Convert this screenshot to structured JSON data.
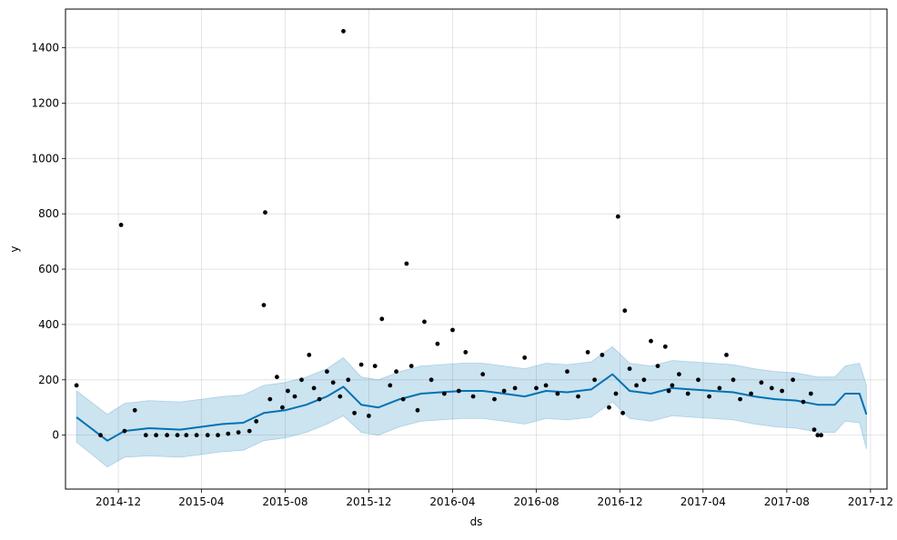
{
  "chart_data": {
    "type": "line",
    "title": "",
    "xlabel": "ds",
    "ylabel": "y",
    "xlim": [
      "2014-09-15",
      "2017-12-25"
    ],
    "ylim": [
      -195,
      1540
    ],
    "grid": true,
    "x_ticks": [
      {
        "date": "2014-12-01",
        "label": "2014-12"
      },
      {
        "date": "2015-04-01",
        "label": "2015-04"
      },
      {
        "date": "2015-08-01",
        "label": "2015-08"
      },
      {
        "date": "2015-12-01",
        "label": "2015-12"
      },
      {
        "date": "2016-04-01",
        "label": "2016-04"
      },
      {
        "date": "2016-08-01",
        "label": "2016-08"
      },
      {
        "date": "2016-12-01",
        "label": "2016-12"
      },
      {
        "date": "2017-04-01",
        "label": "2017-04"
      },
      {
        "date": "2017-08-01",
        "label": "2017-08"
      },
      {
        "date": "2017-12-01",
        "label": "2017-12"
      }
    ],
    "y_ticks": [
      0,
      200,
      400,
      600,
      800,
      1000,
      1200,
      1400
    ],
    "colors": {
      "forecast_line": "#0072b2",
      "uncertainty_band": "#0072b2",
      "observed_points": "#000000"
    },
    "series": [
      {
        "kind": "forecast",
        "x": [
          "2014-10-01",
          "2014-11-15",
          "2014-12-10",
          "2015-01-15",
          "2015-03-01",
          "2015-04-01",
          "2015-05-01",
          "2015-06-01",
          "2015-07-01",
          "2015-08-01",
          "2015-09-01",
          "2015-10-01",
          "2015-10-25",
          "2015-11-20",
          "2015-12-15",
          "2016-01-15",
          "2016-02-15",
          "2016-03-15",
          "2016-04-15",
          "2016-05-15",
          "2016-06-15",
          "2016-07-15",
          "2016-08-15",
          "2016-09-15",
          "2016-10-20",
          "2016-11-20",
          "2016-12-15",
          "2017-01-15",
          "2017-02-15",
          "2017-03-15",
          "2017-04-15",
          "2017-05-15",
          "2017-06-15",
          "2017-07-15",
          "2017-08-15",
          "2017-09-15",
          "2017-10-10",
          "2017-10-25",
          "2017-11-15",
          "2017-11-25"
        ],
        "y": [
          65,
          -20,
          15,
          25,
          20,
          30,
          40,
          45,
          80,
          90,
          110,
          140,
          175,
          110,
          100,
          130,
          150,
          155,
          160,
          160,
          150,
          140,
          160,
          155,
          165,
          220,
          160,
          150,
          170,
          165,
          160,
          155,
          140,
          130,
          125,
          110,
          110,
          150,
          150,
          75
        ]
      },
      {
        "kind": "uncertainty",
        "x": [
          "2014-10-01",
          "2014-11-15",
          "2014-12-10",
          "2015-01-15",
          "2015-03-01",
          "2015-04-01",
          "2015-05-01",
          "2015-06-01",
          "2015-07-01",
          "2015-08-01",
          "2015-09-01",
          "2015-10-01",
          "2015-10-25",
          "2015-11-20",
          "2015-12-15",
          "2016-01-15",
          "2016-02-15",
          "2016-03-15",
          "2016-04-15",
          "2016-05-15",
          "2016-06-15",
          "2016-07-15",
          "2016-08-15",
          "2016-09-15",
          "2016-10-20",
          "2016-11-20",
          "2016-12-15",
          "2017-01-15",
          "2017-02-15",
          "2017-03-15",
          "2017-04-15",
          "2017-05-15",
          "2017-06-15",
          "2017-07-15",
          "2017-08-15",
          "2017-09-15",
          "2017-10-10",
          "2017-10-25",
          "2017-11-15",
          "2017-11-25"
        ],
        "lower": [
          -25,
          -115,
          -80,
          -75,
          -80,
          -70,
          -60,
          -55,
          -20,
          -10,
          10,
          40,
          70,
          10,
          0,
          30,
          50,
          55,
          60,
          60,
          50,
          40,
          60,
          55,
          65,
          120,
          60,
          50,
          70,
          65,
          60,
          55,
          40,
          30,
          25,
          10,
          10,
          50,
          45,
          -50
        ],
        "upper": [
          160,
          75,
          115,
          125,
          120,
          130,
          140,
          145,
          180,
          190,
          210,
          240,
          280,
          210,
          200,
          230,
          250,
          255,
          260,
          260,
          250,
          240,
          260,
          255,
          265,
          320,
          260,
          250,
          270,
          265,
          260,
          255,
          240,
          230,
          225,
          210,
          210,
          250,
          260,
          180
        ]
      },
      {
        "kind": "observed",
        "x": [
          "2014-10-01",
          "2014-11-05",
          "2014-12-05",
          "2014-12-10",
          "2014-12-25",
          "2015-01-10",
          "2015-01-25",
          "2015-02-10",
          "2015-02-25",
          "2015-03-10",
          "2015-03-25",
          "2015-04-10",
          "2015-04-25",
          "2015-05-10",
          "2015-05-25",
          "2015-06-10",
          "2015-06-20",
          "2015-07-01",
          "2015-07-03",
          "2015-07-10",
          "2015-07-20",
          "2015-07-28",
          "2015-08-05",
          "2015-08-15",
          "2015-08-25",
          "2015-09-05",
          "2015-09-12",
          "2015-09-20",
          "2015-10-01",
          "2015-10-10",
          "2015-10-20",
          "2015-10-25",
          "2015-11-01",
          "2015-11-10",
          "2015-11-20",
          "2015-12-01",
          "2015-12-10",
          "2015-12-20",
          "2016-01-01",
          "2016-01-10",
          "2016-01-20",
          "2016-01-25",
          "2016-02-01",
          "2016-02-10",
          "2016-02-20",
          "2016-03-01",
          "2016-03-10",
          "2016-03-20",
          "2016-04-01",
          "2016-04-10",
          "2016-04-20",
          "2016-05-01",
          "2016-05-15",
          "2016-06-01",
          "2016-06-15",
          "2016-07-01",
          "2016-07-15",
          "2016-08-01",
          "2016-08-15",
          "2016-09-01",
          "2016-09-15",
          "2016-10-01",
          "2016-10-15",
          "2016-10-25",
          "2016-11-05",
          "2016-11-15",
          "2016-11-25",
          "2016-11-28",
          "2016-12-05",
          "2016-12-08",
          "2016-12-15",
          "2016-12-25",
          "2017-01-05",
          "2017-01-15",
          "2017-01-25",
          "2017-02-05",
          "2017-02-10",
          "2017-02-15",
          "2017-02-25",
          "2017-03-10",
          "2017-03-25",
          "2017-04-10",
          "2017-04-25",
          "2017-05-05",
          "2017-05-15",
          "2017-05-25",
          "2017-06-10",
          "2017-06-25",
          "2017-07-10",
          "2017-07-25",
          "2017-08-10",
          "2017-08-25",
          "2017-09-05",
          "2017-09-10",
          "2017-09-15",
          "2017-09-20"
        ],
        "y": [
          180,
          0,
          760,
          15,
          90,
          0,
          0,
          0,
          0,
          0,
          0,
          0,
          0,
          5,
          10,
          15,
          50,
          470,
          805,
          130,
          210,
          100,
          160,
          140,
          200,
          290,
          170,
          130,
          230,
          190,
          140,
          1460,
          200,
          80,
          255,
          70,
          250,
          420,
          180,
          230,
          130,
          620,
          250,
          90,
          410,
          200,
          330,
          150,
          380,
          160,
          300,
          140,
          220,
          130,
          160,
          170,
          280,
          170,
          180,
          150,
          230,
          140,
          300,
          200,
          290,
          100,
          150,
          790,
          80,
          450,
          240,
          180,
          200,
          340,
          250,
          320,
          160,
          180,
          220,
          150,
          200,
          140,
          170,
          290,
          200,
          130,
          150,
          190,
          170,
          160,
          200,
          120,
          150,
          20,
          0,
          0
        ]
      }
    ]
  }
}
